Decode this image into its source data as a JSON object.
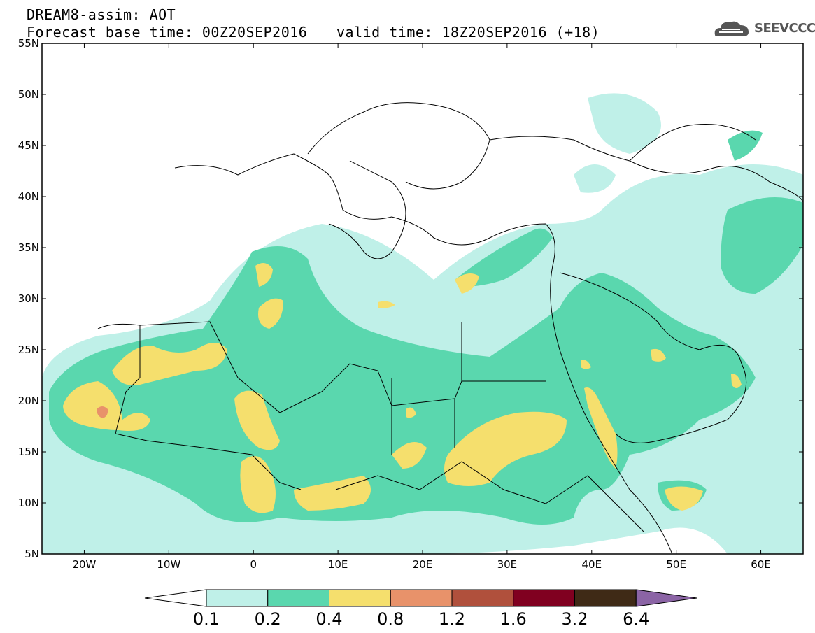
{
  "header": {
    "line1": "DREAM8-assim: AOT",
    "base_time": "Forecast base time: 00Z20SEP2016",
    "valid_time": "valid time: 18Z20SEP2016 (+18)"
  },
  "logo": {
    "text": "SEEVCCC",
    "icon": "cloud-logo-icon"
  },
  "map": {
    "field": "AOT",
    "lat_range": [
      5,
      55
    ],
    "lon_range": [
      -25,
      65
    ],
    "lat_labels": [
      "55N",
      "50N",
      "45N",
      "40N",
      "35N",
      "30N",
      "25N",
      "20N",
      "15N",
      "10N",
      "5N"
    ],
    "lon_labels": [
      "20W",
      "10W",
      "0",
      "10E",
      "20E",
      "30E",
      "40E",
      "50E",
      "60E"
    ]
  },
  "colorbar": {
    "levels": [
      "0.1",
      "0.2",
      "0.4",
      "0.8",
      "1.2",
      "1.6",
      "3.2",
      "6.4"
    ],
    "colors": [
      "#ffffff",
      "#bff0e8",
      "#5ad7ae",
      "#f5df6d",
      "#e8926a",
      "#b0503c",
      "#800020",
      "#3f2a16",
      "#8b64a5"
    ]
  }
}
